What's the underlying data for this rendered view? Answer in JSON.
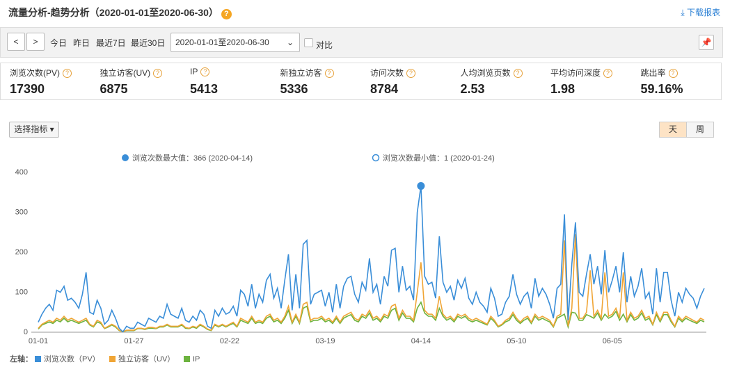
{
  "header": {
    "title": "流量分析-趋势分析（2020-01-01至2020-06-30）",
    "download": "下载报表"
  },
  "toolbar": {
    "quick_ranges": [
      "今日",
      "昨日",
      "最近7日",
      "最近30日"
    ],
    "date_range": "2020-01-01至2020-06-30",
    "compare": "对比"
  },
  "metrics": [
    {
      "label": "浏览次数(PV)",
      "value": 17390
    },
    {
      "label": "独立访客(UV)",
      "value": 6875
    },
    {
      "label": "IP",
      "value": 5413
    },
    {
      "label": "新独立访客",
      "value": 5336
    },
    {
      "label": "访问次数",
      "value": 8784
    },
    {
      "label": "人均浏览页数",
      "value": 2.53
    },
    {
      "label": "平均访问深度",
      "value": 1.98
    },
    {
      "label": "跳出率",
      "value": "59.16%"
    }
  ],
  "controls": {
    "metric_select": "选择指标",
    "granularity": [
      "天",
      "周"
    ]
  },
  "chart_data": {
    "type": "line",
    "max_label": "浏览次数最大值：366 (2020-04-14)",
    "min_label": "浏览次数最小值：1 (2020-01-24)",
    "axis_label": "左轴：",
    "ylim": [
      0,
      400
    ],
    "yticks": [
      0,
      100,
      200,
      300,
      400
    ],
    "grid": false,
    "categories": [
      "01-01",
      null,
      null,
      null,
      null,
      null,
      null,
      null,
      null,
      null,
      null,
      null,
      null,
      null,
      null,
      null,
      null,
      null,
      null,
      null,
      null,
      null,
      null,
      null,
      null,
      null,
      "01-27",
      null,
      null,
      null,
      null,
      null,
      null,
      null,
      null,
      null,
      null,
      null,
      null,
      null,
      null,
      null,
      null,
      null,
      null,
      null,
      null,
      null,
      null,
      null,
      null,
      null,
      "02-22",
      null,
      null,
      null,
      null,
      null,
      null,
      null,
      null,
      null,
      null,
      null,
      null,
      null,
      null,
      null,
      null,
      null,
      null,
      null,
      null,
      null,
      null,
      null,
      null,
      null,
      "03-19",
      null,
      null,
      null,
      null,
      null,
      null,
      null,
      null,
      null,
      null,
      null,
      null,
      null,
      null,
      null,
      null,
      null,
      null,
      null,
      null,
      null,
      null,
      null,
      null,
      null,
      "04-14",
      null,
      null,
      null,
      null,
      null,
      null,
      null,
      null,
      null,
      null,
      null,
      null,
      null,
      null,
      null,
      null,
      null,
      null,
      null,
      null,
      null,
      null,
      null,
      null,
      null,
      "05-10",
      null,
      null,
      null,
      null,
      null,
      null,
      null,
      null,
      null,
      null,
      null,
      null,
      null,
      null,
      null,
      null,
      null,
      null,
      null,
      null,
      null,
      null,
      null,
      null,
      null,
      "06-05",
      null,
      null,
      null,
      null,
      null,
      null,
      null,
      null,
      null,
      null,
      null,
      null,
      null,
      null,
      null,
      null,
      null,
      null,
      null,
      null,
      null,
      null,
      null,
      null,
      null
    ],
    "series": [
      {
        "name": "浏览次数（PV）",
        "color": "#3a8ed8",
        "values": [
          25,
          45,
          60,
          70,
          55,
          105,
          100,
          115,
          80,
          85,
          75,
          60,
          95,
          150,
          50,
          45,
          80,
          60,
          20,
          30,
          55,
          35,
          10,
          1,
          15,
          10,
          10,
          25,
          20,
          15,
          35,
          30,
          25,
          40,
          35,
          70,
          45,
          40,
          35,
          60,
          30,
          25,
          40,
          30,
          55,
          45,
          15,
          10,
          55,
          40,
          60,
          45,
          50,
          65,
          40,
          105,
          95,
          65,
          120,
          60,
          95,
          75,
          130,
          145,
          85,
          110,
          60,
          130,
          195,
          55,
          145,
          60,
          220,
          230,
          70,
          95,
          100,
          105,
          65,
          100,
          50,
          120,
          60,
          115,
          135,
          140,
          95,
          75,
          125,
          105,
          185,
          100,
          120,
          70,
          140,
          115,
          205,
          210,
          100,
          165,
          105,
          115,
          80,
          300,
          366,
          140,
          120,
          125,
          85,
          240,
          125,
          100,
          115,
          80,
          130,
          110,
          135,
          85,
          70,
          100,
          75,
          65,
          50,
          110,
          85,
          40,
          45,
          75,
          90,
          145,
          95,
          70,
          90,
          100,
          60,
          135,
          90,
          110,
          95,
          70,
          35,
          110,
          120,
          295,
          30,
          170,
          275,
          100,
          90,
          145,
          195,
          120,
          165,
          95,
          205,
          100,
          130,
          165,
          100,
          200,
          75,
          140,
          90,
          115,
          160,
          85,
          100,
          45,
          160,
          75,
          150,
          150,
          80,
          40,
          100,
          75,
          110,
          95,
          85,
          60,
          90,
          110
        ]
      },
      {
        "name": "独立访客（UV）",
        "color": "#f0a535",
        "values": [
          10,
          20,
          25,
          30,
          25,
          35,
          30,
          40,
          30,
          35,
          30,
          25,
          30,
          35,
          20,
          15,
          30,
          25,
          10,
          15,
          20,
          15,
          5,
          1,
          5,
          5,
          5,
          10,
          10,
          8,
          12,
          12,
          10,
          15,
          15,
          20,
          15,
          15,
          15,
          20,
          12,
          10,
          15,
          12,
          20,
          15,
          8,
          5,
          20,
          15,
          20,
          15,
          20,
          25,
          15,
          35,
          30,
          25,
          40,
          25,
          30,
          25,
          40,
          45,
          30,
          35,
          25,
          40,
          65,
          25,
          45,
          25,
          70,
          75,
          30,
          35,
          35,
          40,
          30,
          35,
          25,
          40,
          25,
          40,
          45,
          50,
          35,
          30,
          45,
          40,
          55,
          35,
          40,
          30,
          45,
          40,
          65,
          70,
          35,
          55,
          40,
          40,
          30,
          100,
          175,
          55,
          45,
          45,
          35,
          90,
          45,
          35,
          40,
          30,
          45,
          40,
          45,
          35,
          30,
          35,
          30,
          25,
          20,
          40,
          30,
          15,
          20,
          30,
          35,
          50,
          35,
          25,
          35,
          40,
          25,
          45,
          35,
          40,
          35,
          30,
          15,
          40,
          45,
          230,
          15,
          60,
          245,
          35,
          35,
          50,
          155,
          40,
          55,
          35,
          150,
          40,
          45,
          60,
          35,
          150,
          30,
          50,
          35,
          40,
          55,
          35,
          40,
          20,
          50,
          30,
          50,
          50,
          30,
          15,
          40,
          30,
          40,
          35,
          30,
          25,
          35,
          30
        ]
      },
      {
        "name": "IP",
        "color": "#6db33f",
        "values": [
          8,
          18,
          22,
          26,
          22,
          30,
          26,
          35,
          26,
          30,
          26,
          22,
          26,
          30,
          18,
          13,
          26,
          22,
          9,
          13,
          18,
          13,
          4,
          1,
          4,
          4,
          4,
          9,
          9,
          7,
          10,
          10,
          9,
          13,
          13,
          18,
          13,
          13,
          13,
          18,
          10,
          9,
          13,
          10,
          18,
          13,
          7,
          4,
          18,
          13,
          18,
          13,
          18,
          22,
          13,
          30,
          26,
          22,
          35,
          22,
          26,
          22,
          35,
          40,
          26,
          30,
          22,
          35,
          55,
          22,
          40,
          22,
          60,
          65,
          26,
          30,
          30,
          35,
          26,
          30,
          22,
          35,
          22,
          35,
          40,
          44,
          30,
          26,
          40,
          35,
          48,
          30,
          35,
          26,
          40,
          35,
          55,
          60,
          30,
          48,
          35,
          35,
          26,
          60,
          75,
          48,
          40,
          40,
          30,
          60,
          40,
          30,
          35,
          26,
          40,
          35,
          40,
          30,
          26,
          30,
          26,
          22,
          18,
          35,
          26,
          13,
          18,
          26,
          30,
          44,
          30,
          22,
          30,
          35,
          22,
          40,
          30,
          35,
          30,
          26,
          13,
          35,
          40,
          45,
          13,
          50,
          48,
          30,
          30,
          44,
          40,
          35,
          48,
          30,
          45,
          35,
          40,
          52,
          30,
          45,
          26,
          44,
          30,
          35,
          48,
          30,
          35,
          18,
          44,
          26,
          44,
          44,
          26,
          13,
          35,
          26,
          35,
          30,
          26,
          22,
          30,
          26
        ]
      }
    ]
  }
}
